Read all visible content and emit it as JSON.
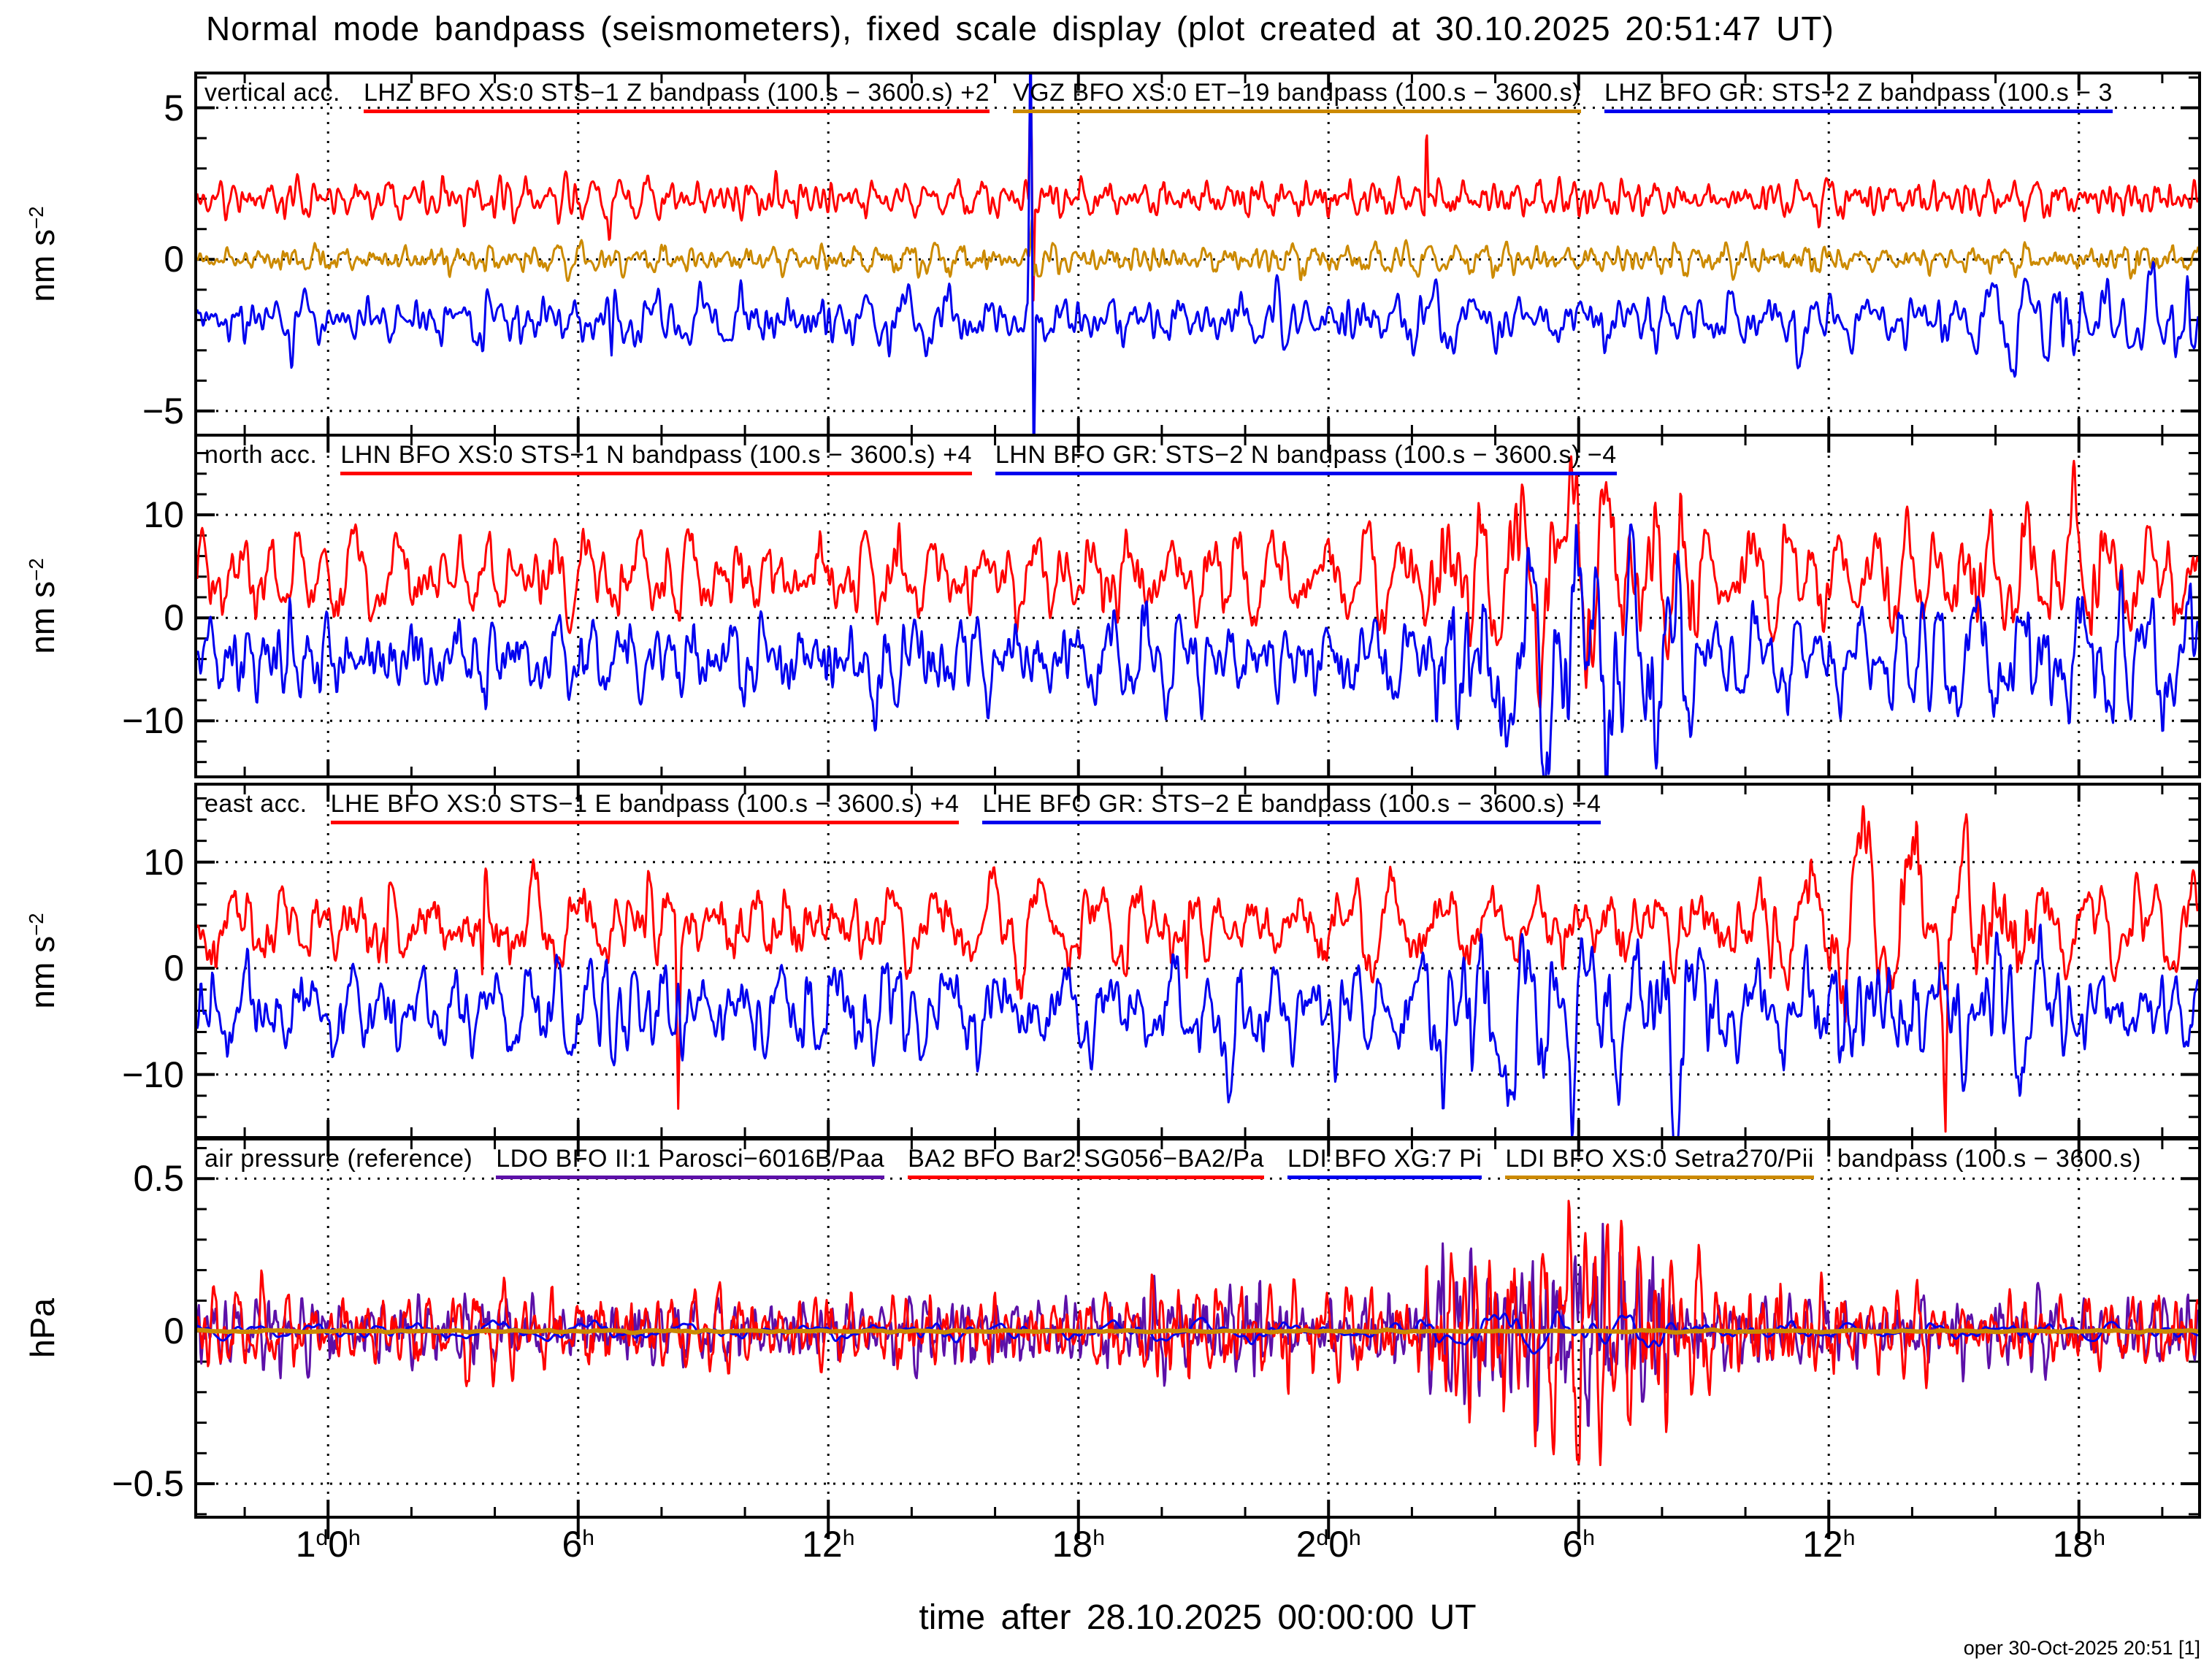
{
  "title": "Normal mode bandpass (seismometers), fixed scale display (plot created at 30.10.2025 20:51:47 UT)",
  "footer": "oper 30-Oct-2025 20:51 [1]",
  "colors": {
    "red": "#ff0000",
    "blue": "#0000ee",
    "gold": "#cc8a00",
    "purple": "#5c10a8",
    "frame": "#000000",
    "background": "#ffffff"
  },
  "x_axis": {
    "title": "time after 28.10.2025 00:00:00 UT",
    "range_hours": [
      20.86,
      68.86
    ],
    "minor_step_hours": 2,
    "major_ticks_hours": [
      24,
      30,
      36,
      42,
      48,
      54,
      60,
      66
    ],
    "tick_labels": [
      [
        {
          "t": "1"
        },
        {
          "t": "d",
          "sup": true
        },
        {
          "t": "0"
        },
        {
          "t": "h",
          "sup": true
        }
      ],
      [
        {
          "t": "6"
        },
        {
          "t": "h",
          "sup": true
        }
      ],
      [
        {
          "t": "12"
        },
        {
          "t": "h",
          "sup": true
        }
      ],
      [
        {
          "t": "18"
        },
        {
          "t": "h",
          "sup": true
        }
      ],
      [
        {
          "t": "2"
        },
        {
          "t": "d",
          "sup": true
        },
        {
          "t": "0"
        },
        {
          "t": "h",
          "sup": true
        }
      ],
      [
        {
          "t": "6"
        },
        {
          "t": "h",
          "sup": true
        }
      ],
      [
        {
          "t": "12"
        },
        {
          "t": "h",
          "sup": true
        }
      ],
      [
        {
          "t": "18"
        },
        {
          "t": "h",
          "sup": true
        }
      ]
    ]
  },
  "chart_data": {
    "type": "line",
    "x_window_hours": [
      20.86,
      68.86
    ],
    "panels": [
      {
        "id": "vertical-acc",
        "label": "vertical acc.",
        "unit": [
          {
            "t": "nm s"
          },
          {
            "t": "−2",
            "sup": true
          }
        ],
        "ylim": [
          -5.75,
          6.1
        ],
        "yticks": [
          {
            "v": 5,
            "label": "5"
          },
          {
            "v": 0,
            "label": "0"
          },
          {
            "v": -5,
            "label": "−5"
          }
        ],
        "minor_step": 1,
        "gridlines": [
          5,
          0,
          -5
        ],
        "legend": [
          {
            "label": "LHZ BFO XS:0 STS−1 Z bandpass (100.s − 3600.s) +2",
            "color": "#ff0000"
          },
          {
            "label": "VGZ BFO XS:0 ET−19 bandpass (100.s − 3600.s)",
            "color": "#cc8a00"
          },
          {
            "label": "LHZ BFO GR: STS−2 Z bandpass (100.s − 3",
            "color": "#0000ee"
          }
        ],
        "traces": [
          {
            "name": "LHZ STS-1 Z +2",
            "color": "#ff0000",
            "offset": 2,
            "std": 0.3,
            "fmin": 1.2,
            "fmax": 12,
            "seed": 11,
            "spikes": [
              {
                "t": 30.75,
                "v": -1.2,
                "w": 0.06
              },
              {
                "t": 40.85,
                "v": 4.5,
                "w": 0.05
              },
              {
                "t": 40.92,
                "v": -3.2,
                "w": 0.04
              },
              {
                "t": 50.35,
                "v": 2.8,
                "w": 0.05
              }
            ],
            "bursts": []
          },
          {
            "name": "VGZ ET-19",
            "color": "#cc8a00",
            "offset": 0,
            "std": 0.22,
            "fmin": 1.4,
            "fmax": 13,
            "seed": 22,
            "spikes": [
              {
                "t": 30.78,
                "v": -0.7,
                "w": 0.05
              },
              {
                "t": 40.88,
                "v": 0.9,
                "w": 0.05
              },
              {
                "t": 40.93,
                "v": -0.8,
                "w": 0.04
              }
            ],
            "bursts": []
          },
          {
            "name": "LHZ STS-2 Z",
            "color": "#0000ee",
            "offset": -2,
            "std": 0.45,
            "fmin": 0.7,
            "fmax": 9,
            "seed": 33,
            "spikes": [
              {
                "t": 30.8,
                "v": -1.6,
                "w": 0.07
              },
              {
                "t": 40.85,
                "v": 9.0,
                "w": 0.06
              },
              {
                "t": 40.93,
                "v": -5.0,
                "w": 0.05
              },
              {
                "t": 59.3,
                "v": -1.4,
                "w": 0.15
              }
            ],
            "bursts": [
              {
                "t0": 63.5,
                "t1": 68.9,
                "gain": 1.5
              }
            ]
          }
        ]
      },
      {
        "id": "north-acc",
        "label": "north acc.",
        "unit": [
          {
            "t": "nm s"
          },
          {
            "t": "−2",
            "sup": true
          }
        ],
        "ylim": [
          -15.3,
          17.6
        ],
        "yticks": [
          {
            "v": 10,
            "label": "10"
          },
          {
            "v": 0,
            "label": "0"
          },
          {
            "v": -10,
            "label": "−10"
          }
        ],
        "minor_step": 2,
        "gridlines": [
          10,
          0,
          -10
        ],
        "legend": [
          {
            "label": "LHN BFO XS:0 STS−1 N bandpass (100.s − 3600.s) +4",
            "color": "#ff0000"
          },
          {
            "label": "LHN BFO GR: STS−2 N bandpass (100.s − 3600.s) −4",
            "color": "#0000ee"
          }
        ],
        "traces": [
          {
            "name": "LHN STS-1 N +4",
            "color": "#ff0000",
            "offset": 4,
            "std": 2.1,
            "fmin": 0.7,
            "fmax": 12,
            "seed": 44,
            "spikes": [
              {
                "t": 53.9,
                "v": 6,
                "w": 0.3
              },
              {
                "t": 54.8,
                "v": 5,
                "w": 0.2
              },
              {
                "t": 65.9,
                "v": 6,
                "w": 0.2
              }
            ],
            "bursts": [
              {
                "t0": 50.8,
                "t1": 56.5,
                "gain": 2.1
              },
              {
                "t0": 62.5,
                "t1": 68.9,
                "gain": 1.35
              }
            ]
          },
          {
            "name": "LHN STS-2 N −4",
            "color": "#0000ee",
            "offset": -4,
            "std": 2.4,
            "fmin": 0.7,
            "fmax": 12,
            "seed": 55,
            "spikes": [
              {
                "t": 37.1,
                "v": -6,
                "w": 0.25
              },
              {
                "t": 52.0,
                "v": -6,
                "w": 0.3
              },
              {
                "t": 53.2,
                "v": -5,
                "w": 0.2
              },
              {
                "t": 54.0,
                "v": 7,
                "w": 0.25
              }
            ],
            "bursts": [
              {
                "t0": 50.8,
                "t1": 56.3,
                "gain": 1.9
              },
              {
                "t0": 62.5,
                "t1": 68.9,
                "gain": 1.3
              }
            ]
          }
        ]
      },
      {
        "id": "east-acc",
        "label": "east acc.",
        "unit": [
          {
            "t": "nm s"
          },
          {
            "t": "−2",
            "sup": true
          }
        ],
        "ylim": [
          -15.8,
          17.2
        ],
        "yticks": [
          {
            "v": 10,
            "label": "10"
          },
          {
            "v": 0,
            "label": "0"
          },
          {
            "v": -10,
            "label": "−10"
          }
        ],
        "minor_step": 2,
        "gridlines": [
          10,
          0,
          -10
        ],
        "legend": [
          {
            "label": "LHE BFO XS:0 STS−1 E bandpass (100.s − 3600.s) +4",
            "color": "#ff0000"
          },
          {
            "label": "LHE BFO GR: STS−2 E bandpass (100.s − 3600.s) −4",
            "color": "#0000ee"
          }
        ],
        "traces": [
          {
            "name": "LHE STS-1 E +4",
            "color": "#ff0000",
            "offset": 4,
            "std": 1.9,
            "fmin": 0.7,
            "fmax": 12,
            "seed": 66,
            "spikes": [
              {
                "t": 25.4,
                "v": -5,
                "w": 0.06
              },
              {
                "t": 27.7,
                "v": -7,
                "w": 0.06
              },
              {
                "t": 31.75,
                "v": 5,
                "w": 0.15
              },
              {
                "t": 32.4,
                "v": -15,
                "w": 0.07
              },
              {
                "t": 44.6,
                "v": -7,
                "w": 0.06
              },
              {
                "t": 58.6,
                "v": -5,
                "w": 0.08
              },
              {
                "t": 60.8,
                "v": 5,
                "w": 0.3
              },
              {
                "t": 62.0,
                "v": 5,
                "w": 0.25
              },
              {
                "t": 62.8,
                "v": -16,
                "w": 0.07
              },
              {
                "t": 63.3,
                "v": 5,
                "w": 0.2
              }
            ],
            "bursts": [
              {
                "t0": 59.5,
                "t1": 64.5,
                "gain": 1.7
              }
            ]
          },
          {
            "name": "LHE STS-2 E −4",
            "color": "#0000ee",
            "offset": -4,
            "std": 2.2,
            "fmin": 0.7,
            "fmax": 12,
            "seed": 77,
            "spikes": [
              {
                "t": 45.6,
                "v": -7,
                "w": 0.3
              },
              {
                "t": 52.3,
                "v": -6,
                "w": 0.3
              },
              {
                "t": 56.3,
                "v": -5,
                "w": 0.25
              }
            ],
            "bursts": [
              {
                "t0": 50.5,
                "t1": 57,
                "gain": 1.5
              },
              {
                "t0": 59.5,
                "t1": 65,
                "gain": 1.5
              }
            ]
          }
        ]
      },
      {
        "id": "air-pressure",
        "label": "air pressure (reference)",
        "unit": [
          {
            "t": "hPa"
          }
        ],
        "ylim": [
          -0.605,
          0.625
        ],
        "yticks": [
          {
            "v": 0.5,
            "label": "0.5"
          },
          {
            "v": 0,
            "label": "0"
          },
          {
            "v": -0.5,
            "label": "−0.5"
          }
        ],
        "minor_step": 0.1,
        "gridlines": [
          0.5,
          0,
          -0.5
        ],
        "legend": [
          {
            "label": "LDO BFO II:1 Parosci−6016B/Paa",
            "color": "#5c10a8"
          },
          {
            "label": "BA2 BFO Bar2 SG056−BA2/Pa",
            "color": "#ff0000"
          },
          {
            "label": "LDI BFO XG:7 Pi",
            "color": "#0000ee"
          },
          {
            "label": "LDI BFO XS:0 Setra270/Pii",
            "color": "#cc8a00"
          },
          {
            "label": "bandpass (100.s − 3600.s)",
            "color": null
          }
        ],
        "traces": [
          {
            "name": "LDO Parosci Paa",
            "color": "#5c10a8",
            "offset": 0,
            "std": 0.052,
            "fmin": 1.5,
            "fmax": 14,
            "seed": 88,
            "spikes": [
              {
                "t": 52.5,
                "v": 0.22,
                "w": 0.05
              },
              {
                "t": 53.0,
                "v": -0.25,
                "w": 0.05
              },
              {
                "t": 53.6,
                "v": 0.25,
                "w": 0.04
              }
            ],
            "bursts": [
              {
                "t0": 50.8,
                "t1": 55.8,
                "gain": 3.0
              },
              {
                "t0": 44,
                "t1": 47,
                "gain": 1.4
              }
            ]
          },
          {
            "name": "BA2 SG056 Pa",
            "color": "#ff0000",
            "offset": 0,
            "std": 0.058,
            "fmin": 1.5,
            "fmax": 14,
            "seed": 99,
            "spikes": [
              {
                "t": 53.2,
                "v": -0.2,
                "w": 0.06
              }
            ],
            "bursts": [
              {
                "t0": 50.8,
                "t1": 55.8,
                "gain": 2.7
              },
              {
                "t0": 44,
                "t1": 47,
                "gain": 1.4
              },
              {
                "t0": 56,
                "t1": 60,
                "gain": 1.5
              }
            ]
          },
          {
            "name": "LDI XG:7 Pi",
            "color": "#0000ee",
            "offset": 0,
            "std": 0.014,
            "fmin": 0.4,
            "fmax": 4,
            "seed": 111,
            "spikes": [],
            "bursts": [
              {
                "t0": 50.5,
                "t1": 56,
                "gain": 2.0
              }
            ]
          },
          {
            "name": "LDI Setra270 Pii",
            "color": "#cc8a00",
            "offset": 0,
            "std": 0.0015,
            "fmin": 0.5,
            "fmax": 4,
            "seed": 122,
            "width": 6,
            "spikes": [],
            "bursts": []
          }
        ]
      }
    ]
  }
}
